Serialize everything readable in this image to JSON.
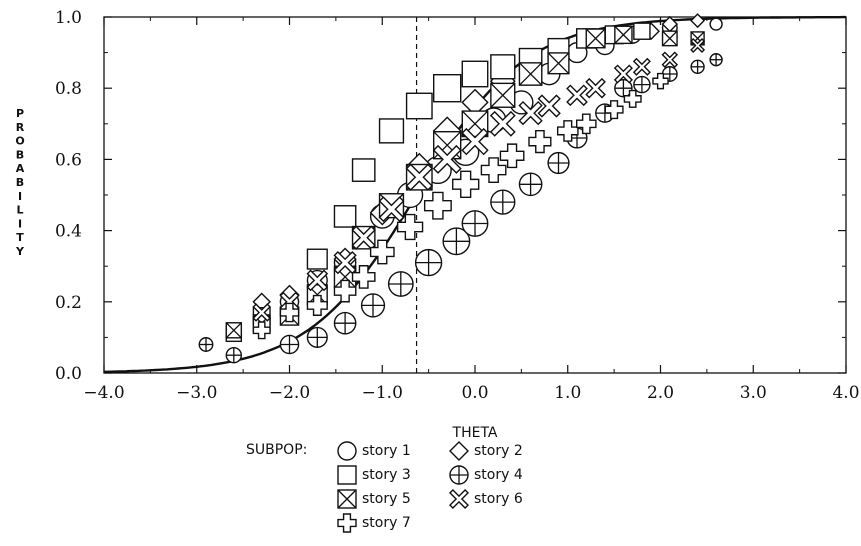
{
  "chart_data": {
    "type": "scatter",
    "title": "",
    "xlabel": "THETA",
    "ylabel": "PROBABILITY",
    "xlim": [
      -4.0,
      4.0
    ],
    "ylim": [
      0.0,
      1.0
    ],
    "xticks": [
      "−4.0",
      "−3.0",
      "−2.0",
      "−1.0",
      "0.0",
      "1.0",
      "2.0",
      "3.0",
      "4.0"
    ],
    "yticks": [
      "0.0",
      "0.2",
      "0.4",
      "0.6",
      "0.8",
      "1.0"
    ],
    "grid": false,
    "legend_position": "bottom",
    "reference_line_x": -0.63,
    "curve": {
      "a": 1.0,
      "b": -0.63,
      "D": 1.7
    },
    "legend_title": "SUBPOP:",
    "series": [
      {
        "name": "story 1",
        "marker": "circle",
        "points": [
          [
            -2.6,
            0.11
          ],
          [
            -2.3,
            0.15
          ],
          [
            -2.0,
            0.2
          ],
          [
            -1.7,
            0.26
          ],
          [
            -1.4,
            0.31
          ],
          [
            -1.0,
            0.44
          ],
          [
            -0.7,
            0.5
          ],
          [
            -0.4,
            0.57
          ],
          [
            -0.1,
            0.62
          ],
          [
            0.2,
            0.71
          ],
          [
            0.5,
            0.76
          ],
          [
            0.8,
            0.84
          ],
          [
            1.1,
            0.9
          ],
          [
            1.4,
            0.92
          ],
          [
            1.7,
            0.95
          ],
          [
            2.1,
            0.97
          ],
          [
            2.6,
            0.98
          ]
        ]
      },
      {
        "name": "story 2",
        "marker": "diamond",
        "points": [
          [
            -2.3,
            0.2
          ],
          [
            -2.0,
            0.22
          ],
          [
            -1.4,
            0.32
          ],
          [
            -1.0,
            0.45
          ],
          [
            -0.6,
            0.58
          ],
          [
            -0.3,
            0.68
          ],
          [
            0.0,
            0.76
          ],
          [
            0.3,
            0.82
          ],
          [
            0.6,
            0.86
          ],
          [
            0.9,
            0.89
          ],
          [
            1.3,
            0.94
          ],
          [
            1.6,
            0.95
          ],
          [
            1.9,
            0.96
          ],
          [
            2.1,
            0.98
          ],
          [
            2.4,
            0.99
          ]
        ]
      },
      {
        "name": "story 3",
        "marker": "square",
        "points": [
          [
            -2.6,
            0.11
          ],
          [
            -2.3,
            0.16
          ],
          [
            -1.7,
            0.32
          ],
          [
            -1.4,
            0.44
          ],
          [
            -1.2,
            0.57
          ],
          [
            -0.9,
            0.68
          ],
          [
            -0.6,
            0.75
          ],
          [
            -0.3,
            0.8
          ],
          [
            0.0,
            0.84
          ],
          [
            0.3,
            0.86
          ],
          [
            0.6,
            0.88
          ],
          [
            0.9,
            0.91
          ],
          [
            1.2,
            0.94
          ],
          [
            1.5,
            0.95
          ],
          [
            1.8,
            0.96
          ]
        ]
      },
      {
        "name": "story 4",
        "marker": "circleplus",
        "points": [
          [
            -2.9,
            0.08
          ],
          [
            -2.6,
            0.05
          ],
          [
            -2.0,
            0.08
          ],
          [
            -1.7,
            0.1
          ],
          [
            -1.4,
            0.14
          ],
          [
            -1.1,
            0.19
          ],
          [
            -0.8,
            0.25
          ],
          [
            -0.5,
            0.31
          ],
          [
            -0.2,
            0.37
          ],
          [
            0.0,
            0.42
          ],
          [
            0.3,
            0.48
          ],
          [
            0.6,
            0.53
          ],
          [
            0.9,
            0.59
          ],
          [
            1.1,
            0.66
          ],
          [
            1.4,
            0.73
          ],
          [
            1.6,
            0.8
          ],
          [
            1.8,
            0.81
          ],
          [
            2.1,
            0.84
          ],
          [
            2.4,
            0.86
          ],
          [
            2.6,
            0.88
          ]
        ]
      },
      {
        "name": "story 5",
        "marker": "hourglass",
        "points": [
          [
            -2.6,
            0.12
          ],
          [
            -2.3,
            0.14
          ],
          [
            -2.0,
            0.16
          ],
          [
            -1.7,
            0.22
          ],
          [
            -1.4,
            0.27
          ],
          [
            -1.2,
            0.38
          ],
          [
            -0.9,
            0.47
          ],
          [
            -0.6,
            0.55
          ],
          [
            -0.3,
            0.64
          ],
          [
            0.0,
            0.7
          ],
          [
            0.3,
            0.78
          ],
          [
            0.6,
            0.84
          ],
          [
            0.9,
            0.87
          ],
          [
            1.3,
            0.94
          ],
          [
            1.6,
            0.95
          ],
          [
            2.1,
            0.94
          ],
          [
            2.4,
            0.94
          ]
        ]
      },
      {
        "name": "story 6",
        "marker": "xcross",
        "points": [
          [
            -2.3,
            0.17
          ],
          [
            -2.0,
            0.2
          ],
          [
            -1.7,
            0.26
          ],
          [
            -1.4,
            0.31
          ],
          [
            -1.2,
            0.38
          ],
          [
            -0.9,
            0.46
          ],
          [
            -0.6,
            0.55
          ],
          [
            -0.3,
            0.6
          ],
          [
            0.0,
            0.65
          ],
          [
            0.3,
            0.7
          ],
          [
            0.6,
            0.73
          ],
          [
            0.8,
            0.75
          ],
          [
            1.1,
            0.78
          ],
          [
            1.3,
            0.8
          ],
          [
            1.6,
            0.84
          ],
          [
            1.8,
            0.86
          ],
          [
            2.1,
            0.88
          ],
          [
            2.4,
            0.92
          ]
        ]
      },
      {
        "name": "story 7",
        "marker": "plus",
        "points": [
          [
            -2.3,
            0.12
          ],
          [
            -2.0,
            0.17
          ],
          [
            -1.7,
            0.19
          ],
          [
            -1.4,
            0.23
          ],
          [
            -1.2,
            0.27
          ],
          [
            -1.0,
            0.34
          ],
          [
            -0.7,
            0.41
          ],
          [
            -0.4,
            0.47
          ],
          [
            -0.1,
            0.53
          ],
          [
            0.2,
            0.57
          ],
          [
            0.4,
            0.61
          ],
          [
            0.7,
            0.65
          ],
          [
            1.0,
            0.68
          ],
          [
            1.2,
            0.7
          ],
          [
            1.5,
            0.74
          ],
          [
            1.7,
            0.77
          ],
          [
            2.0,
            0.82
          ]
        ]
      }
    ]
  }
}
